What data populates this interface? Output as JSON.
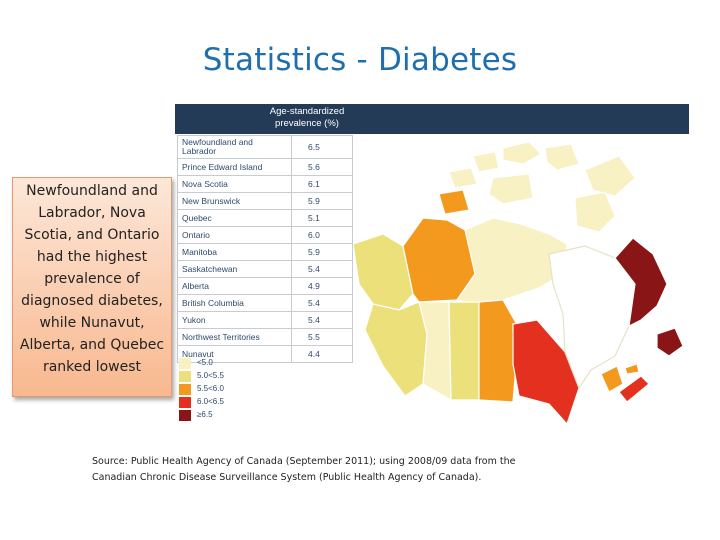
{
  "slide": {
    "title": "Statistics - Diabetes",
    "callout": "Newfoundland and Labrador, Nova Scotia, and Ontario had the highest prevalence of diagnosed diabetes, while Nunavut, Alberta, and Quebec ranked lowest",
    "source": "Source: Public Health Agency of Canada (September 2011); using 2008/09 data from the Canadian Chronic Disease Surveillance System (Public Health Agency of Canada)."
  },
  "table": {
    "header": "Age-standardized prevalence (%)",
    "rows": [
      {
        "name": "Newfoundland and Labrador",
        "value": "6.5"
      },
      {
        "name": "Prince Edward Island",
        "value": "5.6"
      },
      {
        "name": "Nova Scotia",
        "value": "6.1"
      },
      {
        "name": "New Brunswick",
        "value": "5.9"
      },
      {
        "name": "Quebec",
        "value": "5.1"
      },
      {
        "name": "Ontario",
        "value": "6.0"
      },
      {
        "name": "Manitoba",
        "value": "5.9"
      },
      {
        "name": "Saskatchewan",
        "value": "5.4"
      },
      {
        "name": "Alberta",
        "value": "4.9"
      },
      {
        "name": "British Columbia",
        "value": "5.4"
      },
      {
        "name": "Yukon",
        "value": "5.4"
      },
      {
        "name": "Northwest Territories",
        "value": "5.5"
      },
      {
        "name": "Nunavut",
        "value": "4.4"
      }
    ]
  },
  "legend": [
    {
      "label": "<5.0",
      "color": "#f7f1c4"
    },
    {
      "label": "5.0<5.5",
      "color": "#ece07a"
    },
    {
      "label": "5.5<6.0",
      "color": "#f39a1e"
    },
    {
      "label": "6.0<6.5",
      "color": "#e4301e"
    },
    {
      "label": "≥6.5",
      "color": "#8a1516"
    }
  ]
}
